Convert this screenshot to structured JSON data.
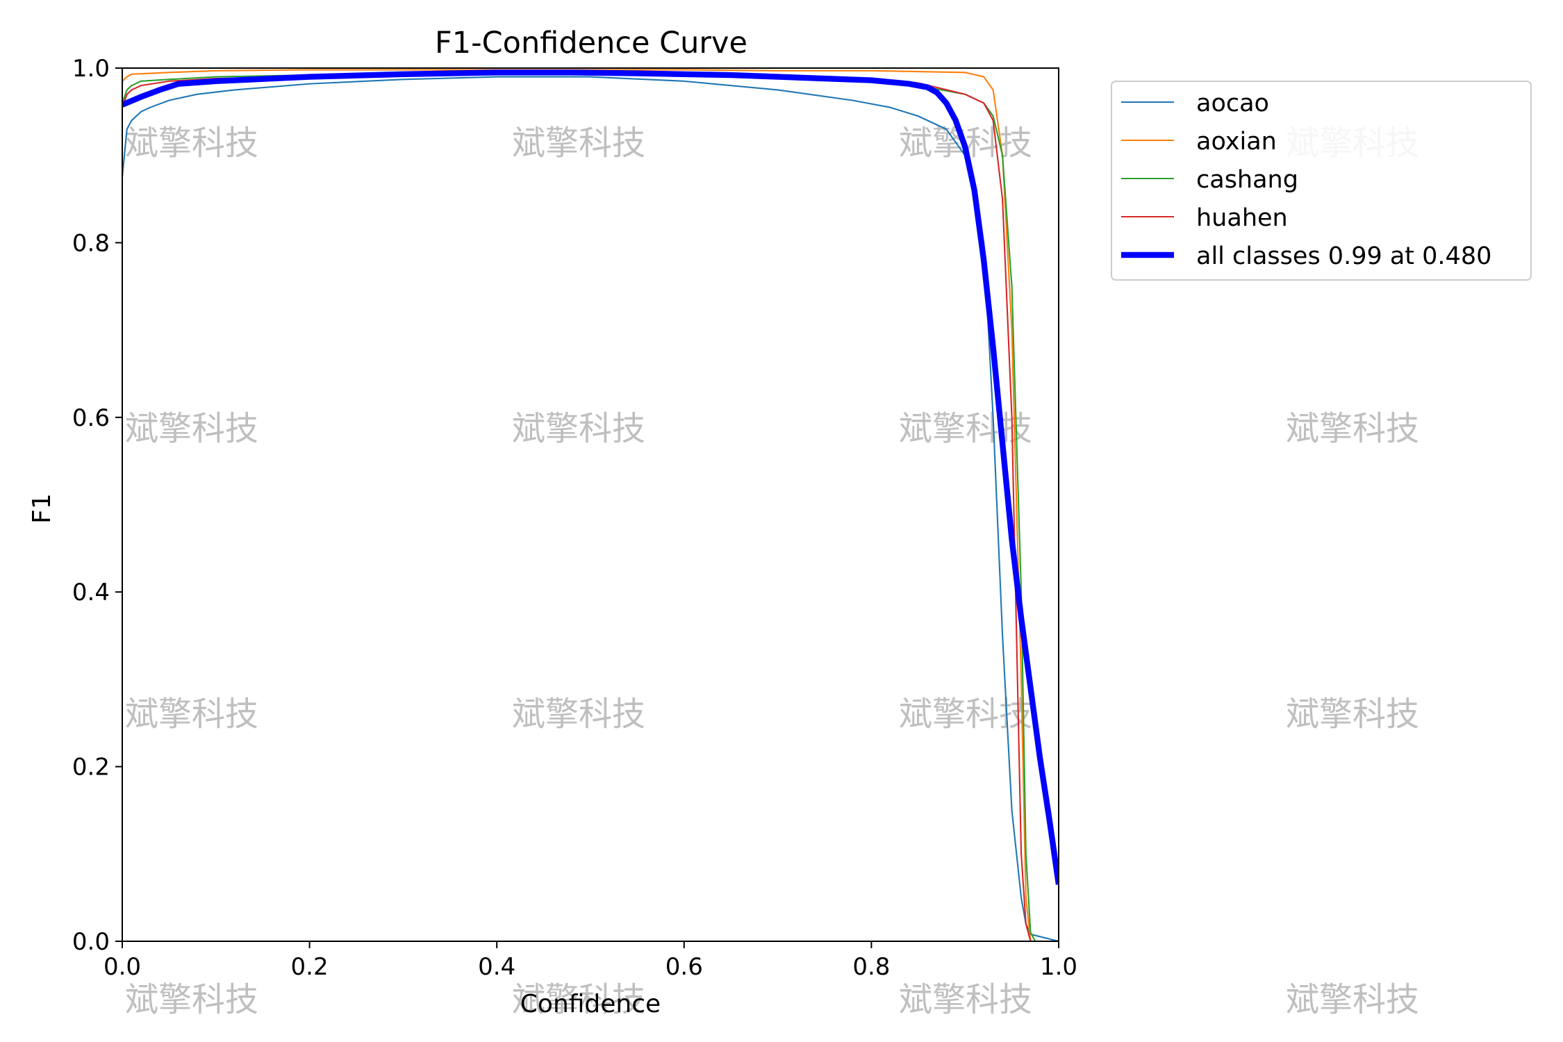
{
  "chart_data": {
    "type": "line",
    "title": "F1-Confidence Curve",
    "xlabel": "Confidence",
    "ylabel": "F1",
    "xlim": [
      0,
      1
    ],
    "ylim": [
      0,
      1
    ],
    "xticks": [
      0.0,
      0.2,
      0.4,
      0.6,
      0.8,
      1.0
    ],
    "yticks": [
      0.0,
      0.2,
      0.4,
      0.6,
      0.8,
      1.0
    ],
    "xtick_labels": [
      "0.0",
      "0.2",
      "0.4",
      "0.6",
      "0.8",
      "1.0"
    ],
    "ytick_labels": [
      "0.0",
      "0.2",
      "0.4",
      "0.6",
      "0.8",
      "1.0"
    ],
    "grid": false,
    "legend_position": "outside-right-top",
    "watermark": "斌擎科技",
    "series": [
      {
        "name": "aocao",
        "color": "#1f77b4",
        "width": 1.5,
        "x": [
          0.0,
          0.005,
          0.01,
          0.02,
          0.03,
          0.05,
          0.08,
          0.12,
          0.2,
          0.3,
          0.4,
          0.45,
          0.5,
          0.6,
          0.7,
          0.78,
          0.82,
          0.85,
          0.88,
          0.9,
          0.92,
          0.93,
          0.94,
          0.95,
          0.96,
          0.965,
          0.97,
          1.0
        ],
        "y": [
          0.875,
          0.93,
          0.94,
          0.95,
          0.955,
          0.963,
          0.97,
          0.975,
          0.982,
          0.987,
          0.99,
          0.99,
          0.99,
          0.985,
          0.975,
          0.963,
          0.955,
          0.945,
          0.93,
          0.9,
          0.8,
          0.6,
          0.35,
          0.15,
          0.05,
          0.02,
          0.008,
          0.0
        ]
      },
      {
        "name": "aoxian",
        "color": "#ff7f0e",
        "width": 1.5,
        "x": [
          0.0,
          0.005,
          0.01,
          0.05,
          0.1,
          0.2,
          0.3,
          0.4,
          0.5,
          0.6,
          0.7,
          0.8,
          0.85,
          0.9,
          0.92,
          0.93,
          0.94,
          0.95,
          0.96,
          0.965,
          0.97,
          0.98,
          1.0
        ],
        "y": [
          0.985,
          0.99,
          0.993,
          0.995,
          0.997,
          0.998,
          0.998,
          0.998,
          0.998,
          0.998,
          0.997,
          0.997,
          0.996,
          0.995,
          0.99,
          0.975,
          0.9,
          0.7,
          0.3,
          0.05,
          0.0,
          0.0,
          0.0
        ]
      },
      {
        "name": "cashang",
        "color": "#2ca02c",
        "width": 1.5,
        "x": [
          0.0,
          0.005,
          0.01,
          0.02,
          0.05,
          0.1,
          0.2,
          0.3,
          0.4,
          0.5,
          0.6,
          0.7,
          0.8,
          0.85,
          0.9,
          0.92,
          0.93,
          0.94,
          0.95,
          0.96,
          0.965,
          0.97,
          0.975,
          1.0
        ],
        "y": [
          0.96,
          0.975,
          0.98,
          0.985,
          0.987,
          0.99,
          0.992,
          0.993,
          0.994,
          0.994,
          0.993,
          0.99,
          0.985,
          0.98,
          0.97,
          0.96,
          0.945,
          0.9,
          0.75,
          0.4,
          0.1,
          0.01,
          0.0,
          0.0
        ]
      },
      {
        "name": "huahen",
        "color": "#d62728",
        "width": 1.5,
        "x": [
          0.0,
          0.005,
          0.01,
          0.02,
          0.05,
          0.1,
          0.2,
          0.3,
          0.4,
          0.5,
          0.6,
          0.7,
          0.8,
          0.85,
          0.9,
          0.92,
          0.93,
          0.94,
          0.95,
          0.955,
          0.96,
          0.965,
          0.97,
          1.0
        ],
        "y": [
          0.955,
          0.97,
          0.975,
          0.98,
          0.985,
          0.988,
          0.99,
          0.992,
          0.993,
          0.993,
          0.992,
          0.99,
          0.988,
          0.983,
          0.97,
          0.96,
          0.94,
          0.85,
          0.6,
          0.35,
          0.1,
          0.02,
          0.0,
          0.0
        ]
      },
      {
        "name": "all classes 0.99 at 0.480",
        "color": "#0000ff",
        "width": 6,
        "x": [
          0.0,
          0.02,
          0.04,
          0.06,
          0.1,
          0.2,
          0.3,
          0.4,
          0.48,
          0.55,
          0.65,
          0.75,
          0.8,
          0.84,
          0.86,
          0.87,
          0.88,
          0.89,
          0.9,
          0.91,
          0.92,
          0.93,
          0.94,
          0.95,
          0.96,
          0.97,
          0.98,
          0.99,
          1.0
        ],
        "y": [
          0.958,
          0.967,
          0.975,
          0.982,
          0.985,
          0.99,
          0.993,
          0.995,
          0.995,
          0.994,
          0.992,
          0.988,
          0.986,
          0.982,
          0.978,
          0.972,
          0.96,
          0.94,
          0.91,
          0.86,
          0.78,
          0.68,
          0.57,
          0.46,
          0.37,
          0.29,
          0.21,
          0.14,
          0.065
        ]
      }
    ]
  }
}
